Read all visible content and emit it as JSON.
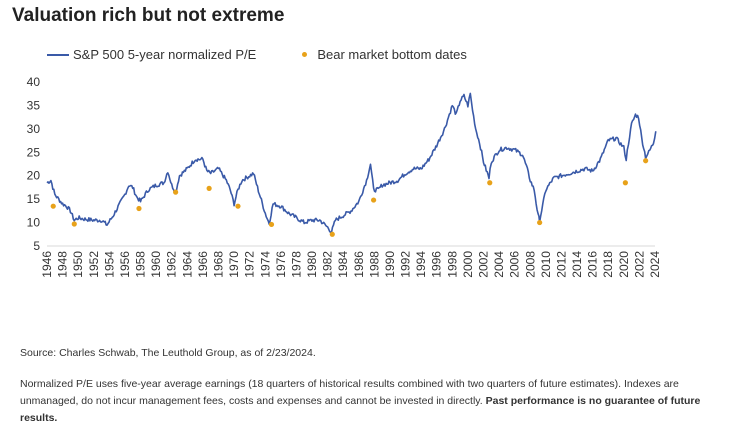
{
  "title": "Valuation rich but not extreme",
  "legend": {
    "series_label": "S&P 500 5-year normalized P/E",
    "dots_label": "Bear market bottom dates"
  },
  "source": "Source: Charles Schwab, The Leuthold Group, as of 2/23/2024.",
  "footnote": {
    "text": "Normalized P/E uses five-year average earnings (18 quarters of historical results combined with two quarters of future estimates). Indexes are unmanaged, do not incur management fees, costs and expenses and cannot be invested in directly. ",
    "bold": "Past performance is no guarantee of future results."
  },
  "colors": {
    "line": "#3a5aa8",
    "dots": "#e8a21a",
    "axis": "#d9d9d9"
  },
  "chart_data": {
    "type": "line",
    "xlim": [
      1946,
      2024
    ],
    "ylim": [
      5,
      40
    ],
    "y_ticks": [
      5,
      10,
      15,
      20,
      25,
      30,
      35,
      40
    ],
    "x_ticks": [
      "1946",
      "1948",
      "1950",
      "1952",
      "1954",
      "1956",
      "1958",
      "1960",
      "1962",
      "1964",
      "1966",
      "1968",
      "1970",
      "1972",
      "1974",
      "1976",
      "1978",
      "1980",
      "1982",
      "1984",
      "1986",
      "1988",
      "1990",
      "1992",
      "1994",
      "1996",
      "1998",
      "2000",
      "2002",
      "2004",
      "2006",
      "2008",
      "2010",
      "2012",
      "2014",
      "2016",
      "2018",
      "2020",
      "2022",
      "2024"
    ],
    "series": [
      {
        "name": "S&P 500 5-year normalized P/E",
        "x": [
          1946.0,
          1946.5,
          1947.0,
          1947.5,
          1948.0,
          1948.5,
          1949.0,
          1949.5,
          1950.0,
          1951.0,
          1952.0,
          1953.0,
          1953.7,
          1954.5,
          1955.0,
          1956.0,
          1956.5,
          1957.0,
          1957.5,
          1958.0,
          1959.0,
          1960.0,
          1961.0,
          1961.5,
          1962.0,
          1962.5,
          1963.0,
          1964.0,
          1965.0,
          1966.0,
          1966.5,
          1967.0,
          1968.0,
          1969.0,
          1969.5,
          1970.0,
          1970.5,
          1971.0,
          1972.0,
          1972.5,
          1973.0,
          1974.0,
          1974.5,
          1975.0,
          1976.0,
          1977.0,
          1978.0,
          1979.0,
          1980.0,
          1981.0,
          1982.0,
          1982.5,
          1983.0,
          1984.0,
          1985.0,
          1986.0,
          1987.0,
          1987.5,
          1987.9,
          1988.5,
          1989.0,
          1990.0,
          1991.0,
          1992.0,
          1993.0,
          1994.0,
          1995.0,
          1996.0,
          1997.0,
          1998.0,
          1998.5,
          1999.0,
          1999.5,
          2000.0,
          2000.3,
          2000.6,
          2001.0,
          2001.5,
          2002.0,
          2002.7,
          2003.0,
          2004.0,
          2005.0,
          2006.0,
          2007.0,
          2007.5,
          2008.0,
          2008.5,
          2009.0,
          2009.2,
          2010.0,
          2011.0,
          2012.0,
          2013.0,
          2014.0,
          2015.0,
          2016.0,
          2017.0,
          2018.0,
          2019.0,
          2020.0,
          2020.3,
          2020.6,
          2021.0,
          2021.5,
          2021.9,
          2022.3,
          2022.8,
          2023.2,
          2023.8,
          2024.1
        ],
        "values": [
          18.5,
          19.0,
          16.0,
          15.0,
          14.0,
          13.5,
          12.5,
          10.5,
          11.0,
          10.7,
          10.5,
          10.5,
          9.5,
          11.5,
          13.0,
          16.0,
          18.0,
          17.5,
          15.5,
          14.5,
          17.0,
          18.0,
          18.5,
          21.0,
          18.0,
          16.5,
          20.0,
          21.5,
          23.5,
          23.5,
          21.0,
          20.5,
          21.5,
          19.0,
          17.0,
          14.0,
          17.0,
          19.0,
          20.0,
          20.5,
          17.5,
          12.0,
          9.8,
          14.0,
          13.5,
          12.0,
          11.0,
          10.0,
          10.5,
          10.5,
          9.0,
          8.0,
          10.5,
          11.5,
          12.5,
          14.5,
          19.0,
          22.5,
          17.0,
          17.0,
          18.0,
          18.5,
          19.0,
          20.5,
          21.5,
          21.5,
          23.5,
          26.5,
          30.0,
          35.0,
          33.0,
          36.0,
          37.0,
          35.0,
          37.5,
          34.0,
          30.0,
          27.0,
          23.0,
          19.5,
          23.0,
          25.5,
          26.0,
          25.5,
          24.5,
          22.0,
          19.0,
          17.0,
          11.5,
          10.5,
          17.0,
          19.5,
          20.0,
          20.5,
          21.0,
          21.5,
          21.0,
          23.5,
          27.5,
          28.0,
          26.0,
          23.5,
          27.0,
          31.0,
          33.0,
          32.5,
          28.0,
          24.0,
          25.0,
          27.0,
          29.5
        ]
      },
      {
        "name": "Bear market bottom dates",
        "x": [
          1946.8,
          1949.5,
          1957.8,
          1962.5,
          1966.8,
          1970.5,
          1974.8,
          1982.6,
          1987.9,
          2002.8,
          2009.2,
          2020.2,
          2022.8
        ],
        "values": [
          13.5,
          9.7,
          13.0,
          16.5,
          17.3,
          13.5,
          9.6,
          7.5,
          14.8,
          18.5,
          10.0,
          18.5,
          23.2
        ]
      }
    ]
  }
}
